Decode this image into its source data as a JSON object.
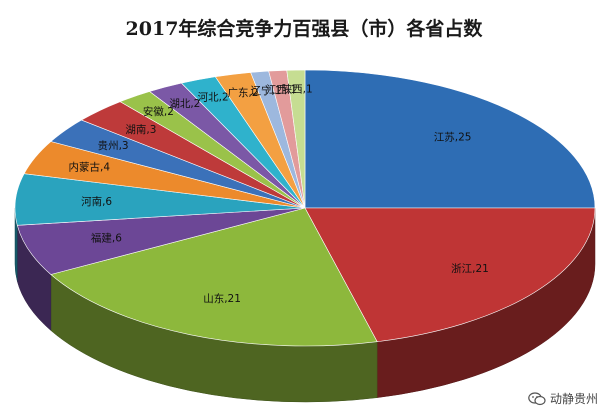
{
  "chart_data": {
    "type": "pie",
    "title": "2017年综合竞争力百强县（市）各省占数",
    "slices": [
      {
        "label": "江苏",
        "value": 25,
        "color": "#2e6db4"
      },
      {
        "label": "浙江",
        "value": 21,
        "color": "#bf3535"
      },
      {
        "label": "山东",
        "value": 21,
        "color": "#8db83c"
      },
      {
        "label": "福建",
        "value": 6,
        "color": "#6c4796"
      },
      {
        "label": "河南",
        "value": 6,
        "color": "#2aa3be"
      },
      {
        "label": "内蒙古",
        "value": 4,
        "color": "#ec8a2c"
      },
      {
        "label": "贵州",
        "value": 3,
        "color": "#3b71b9"
      },
      {
        "label": "湖南",
        "value": 3,
        "color": "#be3a3a"
      },
      {
        "label": "安徽",
        "value": 2,
        "color": "#9ac24a"
      },
      {
        "label": "湖北",
        "value": 2,
        "color": "#7b58a6"
      },
      {
        "label": "河北",
        "value": 2,
        "color": "#2fb2cc"
      },
      {
        "label": "广东",
        "value": 2,
        "color": "#f3a042"
      },
      {
        "label": "辽宁",
        "value": 1,
        "color": "#9db8de"
      },
      {
        "label": "江西",
        "value": 1,
        "color": "#e29b9b"
      },
      {
        "label": "陕西",
        "value": 1,
        "color": "#c6dd92"
      }
    ],
    "legend": "none",
    "data_labels": "category,value"
  },
  "watermark": {
    "text": "动静贵州",
    "icon": "wechat-icon"
  }
}
